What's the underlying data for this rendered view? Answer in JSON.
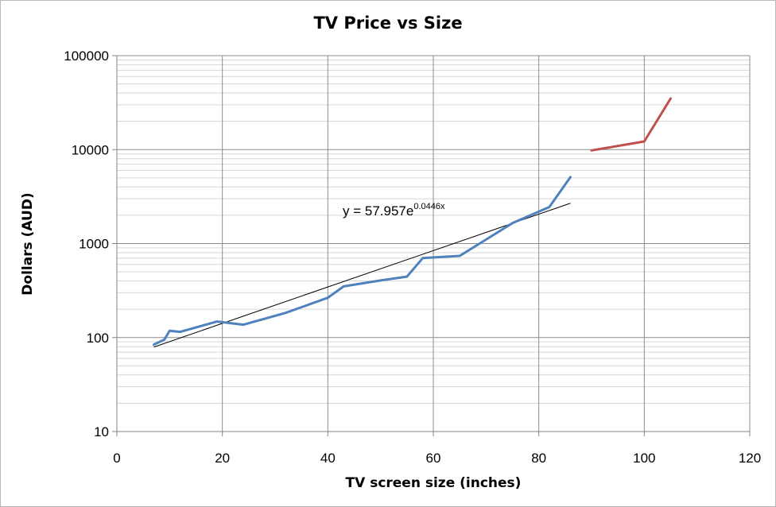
{
  "chart_data": {
    "type": "line",
    "title": "TV Price vs Size",
    "xlabel": "TV screen size (inches)",
    "ylabel": "Dollars (AUD)",
    "xlim": [
      0,
      120
    ],
    "ylim": [
      10,
      100000
    ],
    "yscale": "log",
    "grid": true,
    "legend": "none",
    "x_ticks": [
      "0",
      "20",
      "40",
      "60",
      "80",
      "100",
      "120"
    ],
    "y_ticks": [
      "10",
      "100",
      "1000",
      "10000",
      "100000"
    ],
    "series": [
      {
        "color": "#4f81bd",
        "points": [
          [
            7,
            84
          ],
          [
            9,
            95
          ],
          [
            10,
            118
          ],
          [
            12,
            115
          ],
          [
            19,
            148
          ],
          [
            24,
            137
          ],
          [
            32,
            183
          ],
          [
            40,
            265
          ],
          [
            43,
            350
          ],
          [
            50,
            405
          ],
          [
            55,
            445
          ],
          [
            58,
            700
          ],
          [
            65,
            740
          ],
          [
            75,
            1650
          ],
          [
            82,
            2450
          ],
          [
            86,
            5100
          ]
        ]
      },
      {
        "color": "#c0504d",
        "points": [
          [
            90,
            9800
          ],
          [
            100,
            12200
          ],
          [
            105,
            35000
          ]
        ]
      }
    ],
    "trendline": {
      "type": "exponential",
      "a": 57.957,
      "b": 0.0446,
      "x_range": [
        7,
        86
      ],
      "color": "#000000",
      "label_main": "y = 57.957e",
      "label_exp": "0.0446x"
    }
  }
}
